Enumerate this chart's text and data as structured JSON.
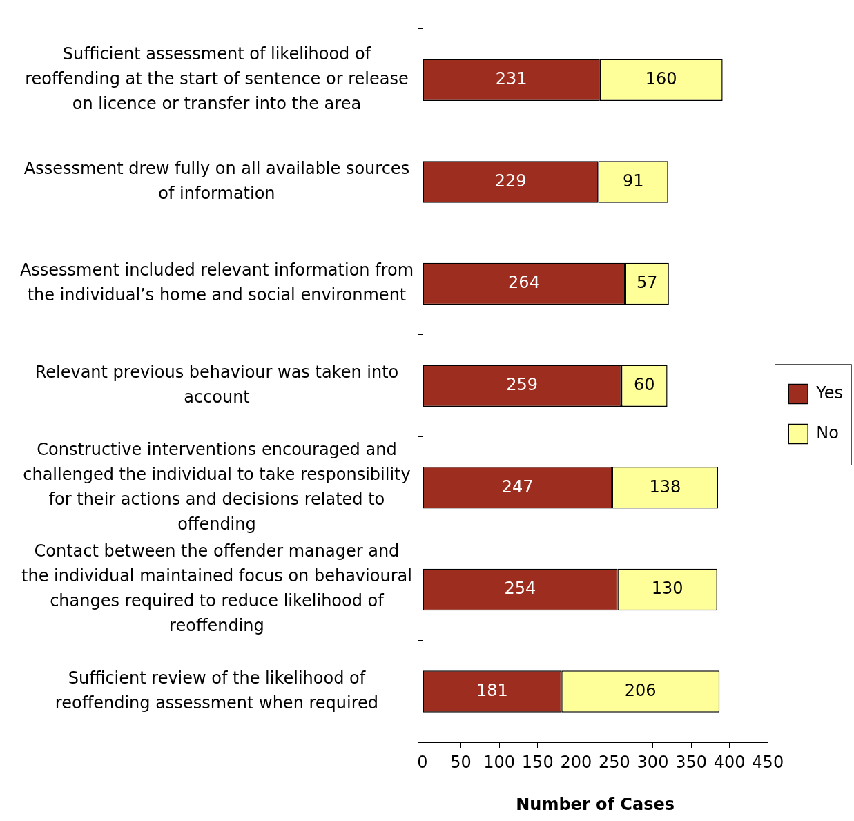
{
  "chart_data": {
    "type": "bar",
    "orientation": "horizontal",
    "stacked": true,
    "categories": [
      "Sufficient assessment of likelihood of reoffending at the start of sentence or release on licence or transfer into the area",
      "Assessment drew fully on all available sources of information",
      "Assessment included relevant information from the individual’s home and social environment",
      "Relevant previous behaviour was taken into account",
      "Constructive interventions encouraged and challenged the individual to take responsibility for their actions and decisions related to offending",
      "Contact between the offender manager and the individual maintained focus on behavioural changes required to reduce likelihood of reoffending",
      "Sufficient review of the likelihood of reoffending assessment when required"
    ],
    "series": [
      {
        "name": "Yes",
        "color": "#9c2d1f",
        "values": [
          231,
          229,
          264,
          259,
          247,
          254,
          181
        ]
      },
      {
        "name": "No",
        "color": "#ffff99",
        "values": [
          160,
          91,
          57,
          60,
          138,
          130,
          206
        ]
      }
    ],
    "xlabel": "Number of Cases",
    "xlim": [
      0,
      450
    ],
    "xticks": [
      0,
      50,
      100,
      150,
      200,
      250,
      300,
      350,
      400,
      450
    ],
    "data_labels": true,
    "legend": "right"
  }
}
